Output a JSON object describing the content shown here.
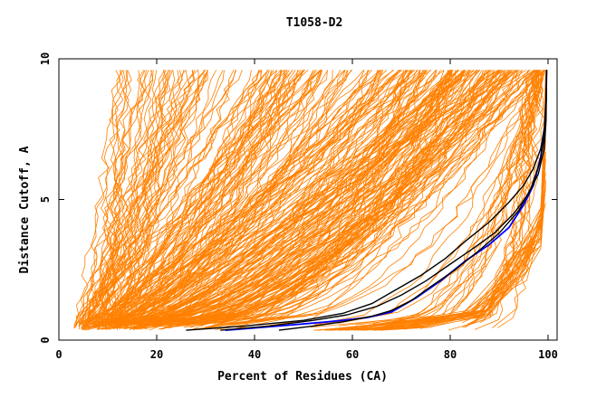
{
  "chart_data": {
    "type": "line",
    "title": "T1058-D2",
    "xlabel": "Percent of Residues (CA)",
    "ylabel": "Distance Cutoff, A",
    "xlim": [
      0,
      100
    ],
    "ylim": [
      0,
      10
    ],
    "x_ticks": [
      "0",
      "20",
      "40",
      "60",
      "80",
      "100"
    ],
    "y_ticks": [
      "0",
      "5",
      "10"
    ],
    "grid": false,
    "colors": {
      "bulk_models": "#ff8000",
      "black_models": "#000000",
      "blue_model": "#0000ff"
    },
    "series": [
      {
        "style": "blue",
        "points": [
          [
            34,
            0.35
          ],
          [
            45,
            0.5
          ],
          [
            55,
            0.65
          ],
          [
            63,
            0.8
          ],
          [
            68,
            1.0
          ],
          [
            73,
            1.5
          ],
          [
            78,
            2.1
          ],
          [
            83,
            2.8
          ],
          [
            88,
            3.4
          ],
          [
            92,
            4.0
          ],
          [
            95,
            4.8
          ],
          [
            97,
            5.5
          ],
          [
            98.5,
            6.5
          ],
          [
            99.3,
            7.5
          ],
          [
            99.6,
            8.5
          ],
          [
            99.7,
            9.6
          ]
        ]
      },
      {
        "style": "black",
        "points": [
          [
            26,
            0.35
          ],
          [
            38,
            0.5
          ],
          [
            50,
            0.7
          ],
          [
            58,
            0.95
          ],
          [
            64,
            1.3
          ],
          [
            69,
            1.8
          ],
          [
            74,
            2.3
          ],
          [
            79,
            2.9
          ],
          [
            83,
            3.5
          ],
          [
            88,
            4.2
          ],
          [
            92,
            4.9
          ],
          [
            95,
            5.5
          ],
          [
            97,
            6.1
          ],
          [
            98.5,
            6.8
          ],
          [
            99.3,
            7.6
          ],
          [
            99.6,
            8.5
          ],
          [
            99.7,
            9.6
          ]
        ]
      },
      {
        "style": "black",
        "points": [
          [
            33,
            0.35
          ],
          [
            43,
            0.5
          ],
          [
            52,
            0.7
          ],
          [
            59,
            0.9
          ],
          [
            65,
            1.2
          ],
          [
            70,
            1.6
          ],
          [
            75,
            2.1
          ],
          [
            80,
            2.7
          ],
          [
            85,
            3.3
          ],
          [
            89,
            3.8
          ],
          [
            93,
            4.5
          ],
          [
            96,
            5.2
          ],
          [
            98,
            5.9
          ],
          [
            99.2,
            6.8
          ],
          [
            99.6,
            7.8
          ],
          [
            99.7,
            9.6
          ]
        ]
      },
      {
        "style": "black",
        "points": [
          [
            45,
            0.35
          ],
          [
            52,
            0.5
          ],
          [
            58,
            0.65
          ],
          [
            64,
            0.85
          ],
          [
            68,
            1.05
          ],
          [
            72,
            1.4
          ],
          [
            76,
            1.9
          ],
          [
            81,
            2.5
          ],
          [
            86,
            3.2
          ],
          [
            90,
            3.8
          ],
          [
            94,
            4.6
          ],
          [
            96.5,
            5.4
          ],
          [
            98.3,
            6.3
          ],
          [
            99.3,
            7.3
          ],
          [
            99.6,
            8.4
          ],
          [
            99.7,
            9.6
          ]
        ]
      }
    ]
  }
}
